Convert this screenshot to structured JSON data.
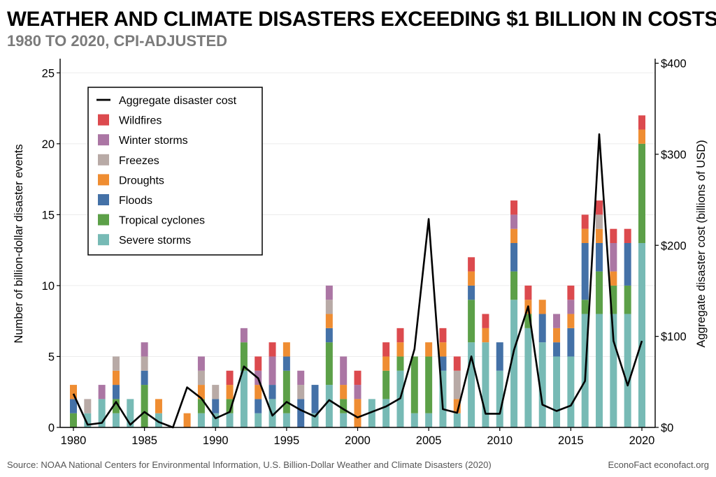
{
  "header": {
    "title": "WEATHER AND CLIMATE DISASTERS EXCEEDING $1 BILLION IN COSTS",
    "subtitle": "1980 TO 2020, CPI-ADJUSTED"
  },
  "footer": {
    "source": "Source: NOAA National Centers for Environmental Information, U.S. Billion-Dollar Weather and Climate Disasters (2020)",
    "credit": "EconoFact  econofact.org"
  },
  "chart_data": {
    "type": "bar",
    "stacked": true,
    "title": "WEATHER AND CLIMATE DISASTERS EXCEEDING $1 BILLION IN COSTS",
    "subtitle": "1980 TO 2020, CPI-ADJUSTED",
    "xlabel": "",
    "ylabel": "Number of billion-dollar disaster events",
    "y2label": "Aggregate disaster cost (billions of USD)",
    "ylim": [
      0,
      26
    ],
    "y2lim": [
      0,
      405
    ],
    "years": [
      1980,
      1981,
      1982,
      1983,
      1984,
      1985,
      1986,
      1987,
      1988,
      1989,
      1990,
      1991,
      1992,
      1993,
      1994,
      1995,
      1996,
      1997,
      1998,
      1999,
      2000,
      2001,
      2002,
      2003,
      2004,
      2005,
      2006,
      2007,
      2008,
      2009,
      2010,
      2011,
      2012,
      2013,
      2014,
      2015,
      2016,
      2017,
      2018,
      2019,
      2020
    ],
    "x_tick_labels": [
      "1980",
      "1985",
      "1990",
      "1995",
      "2000",
      "2005",
      "2010",
      "2015",
      "2020"
    ],
    "y_tick_labels": [
      "0",
      "5",
      "10",
      "15",
      "20",
      "25"
    ],
    "y2_tick_labels": [
      "$0",
      "$100",
      "$200",
      "$300",
      "$400"
    ],
    "y_ticks": [
      0,
      5,
      10,
      15,
      20,
      25
    ],
    "y2_ticks": [
      0,
      100,
      200,
      300,
      400
    ],
    "legend_position": "top-left",
    "series": [
      {
        "name": "Severe storms",
        "color": "#77bab5",
        "values": [
          0,
          1,
          2,
          1,
          2,
          0,
          1,
          0,
          0,
          1,
          1,
          1,
          4,
          1,
          2,
          1,
          0,
          1,
          3,
          1,
          0,
          2,
          2,
          4,
          1,
          1,
          4,
          1,
          6,
          6,
          4,
          9,
          7,
          6,
          5,
          5,
          8,
          8,
          8,
          8,
          13
        ]
      },
      {
        "name": "Tropical cyclones",
        "color": "#5ca048",
        "values": [
          1,
          0,
          0,
          1,
          0,
          3,
          0,
          0,
          0,
          1,
          0,
          1,
          2,
          0,
          0,
          3,
          0,
          0,
          3,
          1,
          0,
          0,
          2,
          1,
          4,
          4,
          0,
          0,
          3,
          0,
          0,
          2,
          1,
          0,
          0,
          0,
          1,
          3,
          2,
          2,
          7
        ]
      },
      {
        "name": "Floods",
        "color": "#4471a7",
        "values": [
          1,
          0,
          0,
          1,
          0,
          1,
          0,
          0,
          0,
          0,
          1,
          0,
          0,
          1,
          1,
          1,
          2,
          2,
          1,
          0,
          0,
          0,
          0,
          0,
          0,
          0,
          1,
          0,
          1,
          0,
          2,
          2,
          0,
          2,
          1,
          2,
          4,
          2,
          0,
          3,
          0
        ]
      },
      {
        "name": "Droughts",
        "color": "#ef8d32",
        "values": [
          1,
          0,
          0,
          1,
          0,
          0,
          1,
          0,
          1,
          1,
          0,
          1,
          0,
          1,
          0,
          1,
          0,
          0,
          1,
          1,
          2,
          0,
          1,
          1,
          0,
          1,
          1,
          1,
          1,
          1,
          0,
          1,
          1,
          1,
          1,
          1,
          1,
          1,
          1,
          0,
          1
        ]
      },
      {
        "name": "Freezes",
        "color": "#b8aaa6",
        "values": [
          0,
          1,
          0,
          1,
          0,
          1,
          0,
          0,
          0,
          1,
          1,
          0,
          0,
          0,
          0,
          0,
          1,
          0,
          1,
          0,
          0,
          0,
          0,
          0,
          0,
          0,
          0,
          2,
          0,
          0,
          0,
          0,
          0,
          0,
          0,
          0,
          0,
          1,
          0,
          0,
          0
        ]
      },
      {
        "name": "Winter storms",
        "color": "#ab76a4",
        "values": [
          0,
          0,
          1,
          0,
          0,
          1,
          0,
          0,
          0,
          1,
          0,
          0,
          1,
          1,
          2,
          0,
          1,
          0,
          1,
          2,
          1,
          0,
          0,
          0,
          0,
          0,
          0,
          0,
          0,
          0,
          0,
          1,
          0,
          0,
          1,
          1,
          0,
          0,
          2,
          0,
          0
        ]
      },
      {
        "name": "Wildfires",
        "color": "#dc4a4e",
        "values": [
          0,
          0,
          0,
          0,
          0,
          0,
          0,
          0,
          0,
          0,
          0,
          1,
          0,
          1,
          1,
          0,
          0,
          0,
          0,
          0,
          1,
          0,
          1,
          1,
          0,
          0,
          1,
          1,
          1,
          1,
          0,
          1,
          1,
          0,
          0,
          1,
          1,
          1,
          1,
          1,
          1
        ]
      }
    ],
    "line": {
      "name": "Aggregate disaster cost",
      "color": "#000000",
      "values": [
        37,
        3,
        5,
        28,
        3,
        17,
        6,
        0,
        44,
        32,
        10,
        17,
        67,
        54,
        13,
        28,
        19,
        12,
        30,
        20,
        11,
        17,
        23,
        32,
        86,
        229,
        20,
        16,
        78,
        15,
        15,
        85,
        133,
        25,
        18,
        24,
        51,
        322,
        95,
        46,
        95
      ]
    },
    "legend": [
      "Aggregate disaster cost",
      "Wildfires",
      "Winter storms",
      "Freezes",
      "Droughts",
      "Floods",
      "Tropical cyclones",
      "Severe storms"
    ]
  }
}
